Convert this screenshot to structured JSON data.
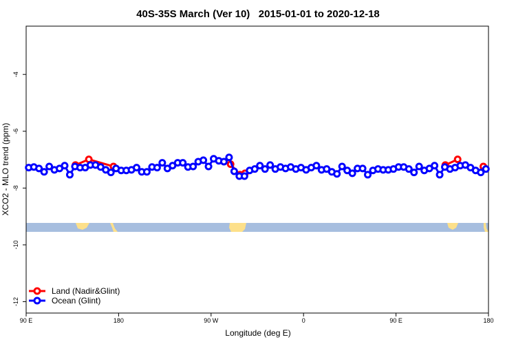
{
  "chart_data": {
    "type": "line",
    "title": "40S-35S March (Ver 10)   2015-01-01 to 2020-12-18",
    "xlabel": "Longitude (deg E)",
    "ylabel": "XCO2 - MLO trend (ppm)",
    "xlim": [
      90,
      540
    ],
    "ylim": [
      -12.4,
      -2.3
    ],
    "xticks": [
      {
        "value": 90,
        "label": "90 E"
      },
      180,
      {
        "value": 270,
        "label": "90 W"
      },
      {
        "value": 360,
        "label": "0"
      },
      {
        "value": 450,
        "label": "90 E"
      },
      {
        "value": 540,
        "label": "180"
      }
    ],
    "yticks": [
      -4,
      -6,
      -8,
      -10,
      -12
    ],
    "legend": "lower left",
    "series": [
      {
        "name": "Land (Nadir&Glint)",
        "color": "#ff0000",
        "x": [
          138,
          151,
          175,
          null,
          289,
          298,
          303,
          null,
          498,
          510,
          null,
          535
        ],
        "values": [
          -7.19,
          -6.99,
          -7.24,
          null,
          -7.16,
          -7.53,
          -7.48,
          null,
          -7.19,
          -6.99,
          null,
          -7.24
        ]
      },
      {
        "name": "Ocean (Glint)",
        "color": "#0000ff",
        "x": [
          92.5,
          97.5,
          102.5,
          107.5,
          112.5,
          117.5,
          122.5,
          127.5,
          132.5,
          137.5,
          142.5,
          147.5,
          152.5,
          157.5,
          162.5,
          167.5,
          172.5,
          177.5,
          182.5,
          187.5,
          192.5,
          197.5,
          202.5,
          207.5,
          212.5,
          217.5,
          222.5,
          227.5,
          232.5,
          237.5,
          242.5,
          247.5,
          252.5,
          257.5,
          262.5,
          267.5,
          272.5,
          277.5,
          282.5,
          287.5,
          292.5,
          297.5,
          302.5,
          307.5,
          312.5,
          317.5,
          322.5,
          327.5,
          332.5,
          337.5,
          342.5,
          347.5,
          352.5,
          357.5,
          362.5,
          367.5,
          372.5,
          377.5,
          382.5,
          387.5,
          392.5,
          397.5,
          402.5,
          407.5,
          412.5,
          417.5,
          422.5,
          427.5,
          432.5,
          437.5,
          442.5,
          447.5,
          452.5,
          457.5,
          462.5,
          467.5,
          472.5,
          477.5,
          482.5,
          487.5,
          492.5,
          497.5,
          502.5,
          507.5,
          512.5,
          517.5,
          522.5,
          527.5,
          532.5,
          537.5
        ],
        "values": [
          -7.28,
          -7.26,
          -7.31,
          -7.43,
          -7.24,
          -7.36,
          -7.31,
          -7.21,
          -7.53,
          -7.24,
          -7.28,
          -7.28,
          -7.19,
          -7.19,
          -7.26,
          -7.36,
          -7.45,
          -7.31,
          -7.38,
          -7.38,
          -7.36,
          -7.28,
          -7.43,
          -7.43,
          -7.26,
          -7.28,
          -7.11,
          -7.31,
          -7.21,
          -7.11,
          -7.11,
          -7.26,
          -7.24,
          -7.07,
          -7.02,
          -7.24,
          -6.97,
          -7.04,
          -7.07,
          -6.92,
          -7.41,
          -7.58,
          -7.58,
          -7.38,
          -7.33,
          -7.21,
          -7.33,
          -7.19,
          -7.33,
          -7.26,
          -7.31,
          -7.26,
          -7.33,
          -7.28,
          -7.36,
          -7.28,
          -7.21,
          -7.36,
          -7.33,
          -7.43,
          -7.5,
          -7.24,
          -7.38,
          -7.48,
          -7.31,
          -7.31,
          -7.53,
          -7.38,
          -7.33,
          -7.36,
          -7.36,
          -7.33,
          -7.26,
          -7.26,
          -7.33,
          -7.45,
          -7.24,
          -7.38,
          -7.31,
          -7.21,
          -7.53,
          -7.26,
          -7.33,
          -7.28,
          -7.21,
          -7.19,
          -7.28,
          -7.38,
          -7.45,
          -7.33
        ]
      }
    ]
  }
}
